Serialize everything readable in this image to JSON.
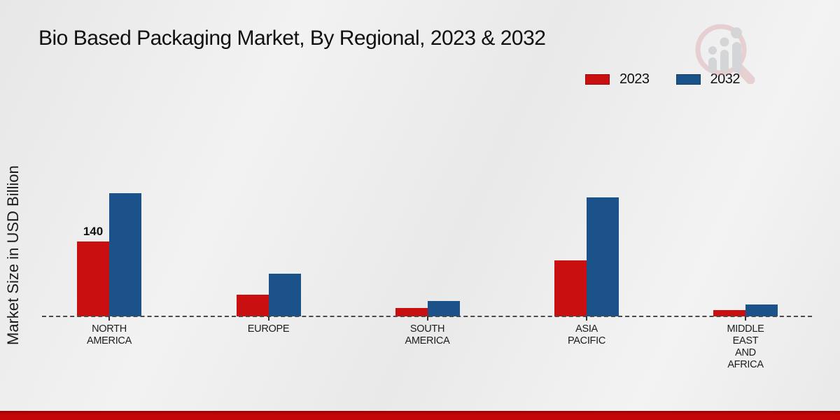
{
  "page": {
    "title": "Bio Based Packaging Market, By Regional, 2023 & 2032"
  },
  "colors": {
    "series_2023": "#c90f0f",
    "series_2032": "#1b5289",
    "footer_bar": "#c40606",
    "axis_line": "#4a4a4a",
    "background": "#ededed"
  },
  "legend": {
    "items": [
      {
        "label": "2023",
        "color": "#c90f0f"
      },
      {
        "label": "2032",
        "color": "#1b5289"
      }
    ]
  },
  "watermark": {
    "name": "market-research-future-logo"
  },
  "chart_data": {
    "type": "bar",
    "title": "Bio Based Packaging Market, By Regional, 2023 & 2032",
    "xlabel": "",
    "ylabel": "Market Size in USD Billion",
    "categories": [
      "NORTH AMERICA",
      "EUROPE",
      "SOUTH AMERICA",
      "ASIA PACIFIC",
      "MIDDLE EAST AND AFRICA"
    ],
    "category_lines": [
      [
        "NORTH",
        "AMERICA"
      ],
      [
        "EUROPE"
      ],
      [
        "SOUTH",
        "AMERICA"
      ],
      [
        "ASIA",
        "PACIFIC"
      ],
      [
        "MIDDLE",
        "EAST",
        "AND",
        "AFRICA"
      ]
    ],
    "series": [
      {
        "name": "2023",
        "color": "#c90f0f",
        "values": [
          140,
          40,
          16,
          105,
          12
        ]
      },
      {
        "name": "2032",
        "color": "#1b5289",
        "values": [
          230,
          80,
          29,
          222,
          22
        ]
      }
    ],
    "data_labels": [
      {
        "series": "2023",
        "category": "NORTH AMERICA",
        "text": "140"
      }
    ],
    "ylim": [
      0,
      240
    ],
    "grid": false,
    "legend_position": "top-right",
    "baseline_style": "dashed",
    "y_axis_ticks_visible": false
  }
}
